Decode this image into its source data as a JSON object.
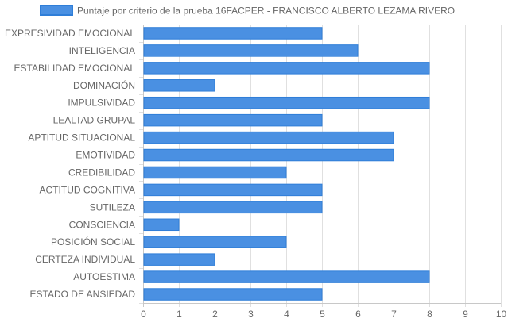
{
  "chart_data": {
    "type": "bar",
    "orientation": "horizontal",
    "legend_position": "top",
    "grid": true,
    "xlim": [
      0,
      10
    ],
    "ticks": [
      "0",
      "1",
      "2",
      "3",
      "4",
      "5",
      "6",
      "7",
      "8",
      "9",
      "10"
    ],
    "categories": [
      "EXPRESIVIDAD EMOCIONAL",
      "INTELIGENCIA",
      "ESTABILIDAD EMOCIONAL",
      "DOMINACIÓN",
      "IMPULSIVIDAD",
      "LEALTAD GRUPAL",
      "APTITUD SITUACIONAL",
      "EMOTIVIDAD",
      "CREDIBILIDAD",
      "ACTITUD COGNITIVA",
      "SUTILEZA",
      "CONSCIENCIA",
      "POSICIÓN SOCIAL",
      "CERTEZA INDIVIDUAL",
      "AUTOESTIMA",
      "ESTADO DE ANSIEDAD"
    ],
    "series": [
      {
        "name": "Puntaje por criterio de la prueba 16FACPER - FRANCISCO ALBERTO LEZAMA RIVERO",
        "values": [
          5,
          6,
          8,
          2,
          8,
          5,
          7,
          7,
          4,
          5,
          5,
          1,
          4,
          2,
          8,
          5
        ]
      }
    ],
    "colors": {
      "bar_fill": "#4a90e2",
      "bar_stroke": "#2f7ed8",
      "grid": "#e0e0e0",
      "axis": "#c8c8c8"
    }
  }
}
